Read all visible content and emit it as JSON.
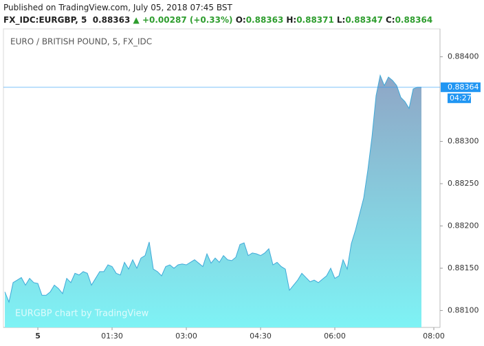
{
  "chart_data": {
    "type": "area",
    "published": "Published on TradingView.com, July 05, 2018 07:45 BST",
    "symbol": "FX_IDC:EURGBP, 5",
    "price": 0.88363,
    "change_arrow": "▲",
    "change": "+0.00287 (+0.33%)",
    "ohlc": [
      {
        "name": "O:",
        "value": 0.88363
      },
      {
        "name": "H:",
        "value": 0.88371
      },
      {
        "name": "L:",
        "value": 0.88347
      },
      {
        "name": "C:",
        "value": 0.88364
      }
    ],
    "title": "EURO / BRITISH POUND, 5, FX_IDC",
    "watermark": "EURGBP chart by TradingView",
    "last_price": {
      "value": 0.88364,
      "label": "0.88364"
    },
    "countdown": "04:27",
    "line_color": "#3fa9d8",
    "fill_top": "#8fa6c6",
    "fill_bottom": "#7ef3f5",
    "label_color": "#2196f3",
    "x": [
      -40,
      -35,
      -30,
      -25,
      -20,
      -15,
      -10,
      -5,
      0,
      5,
      10,
      15,
      20,
      25,
      30,
      35,
      40,
      45,
      50,
      55,
      60,
      65,
      70,
      75,
      80,
      85,
      90,
      95,
      100,
      105,
      110,
      115,
      120,
      125,
      130,
      135,
      140,
      145,
      150,
      155,
      160,
      165,
      170,
      175,
      180,
      185,
      190,
      195,
      200,
      205,
      210,
      215,
      220,
      225,
      230,
      235,
      240,
      245,
      250,
      255,
      260,
      265,
      270,
      275,
      280,
      285,
      290,
      295,
      300,
      305,
      310,
      315,
      320,
      325,
      330,
      335,
      340,
      345,
      350,
      355,
      360,
      365,
      370,
      375,
      380,
      385,
      390,
      395,
      400,
      405,
      410,
      415,
      420,
      425,
      430,
      435,
      440,
      445,
      450,
      455,
      460,
      465
    ],
    "values": [
      0.88122,
      0.8811,
      0.88133,
      0.88136,
      0.88139,
      0.8813,
      0.88138,
      0.88133,
      0.88132,
      0.88118,
      0.88118,
      0.88122,
      0.8813,
      0.88126,
      0.8812,
      0.88138,
      0.88133,
      0.88144,
      0.88142,
      0.88146,
      0.88144,
      0.8813,
      0.88138,
      0.88146,
      0.88146,
      0.88154,
      0.88152,
      0.88144,
      0.88142,
      0.88157,
      0.88149,
      0.8816,
      0.8815,
      0.88162,
      0.88165,
      0.88181,
      0.88149,
      0.88146,
      0.88141,
      0.88152,
      0.88154,
      0.8815,
      0.88154,
      0.88155,
      0.88154,
      0.88157,
      0.8816,
      0.88156,
      0.88152,
      0.88167,
      0.88156,
      0.88162,
      0.88157,
      0.88165,
      0.8816,
      0.88159,
      0.88163,
      0.88178,
      0.8818,
      0.88165,
      0.88168,
      0.88167,
      0.88165,
      0.88168,
      0.88173,
      0.88154,
      0.88157,
      0.88152,
      0.88149,
      0.88124,
      0.8813,
      0.88136,
      0.88144,
      0.88139,
      0.88134,
      0.88136,
      0.88133,
      0.88137,
      0.88141,
      0.8815,
      0.88138,
      0.88141,
      0.8816,
      0.88149,
      0.88179,
      0.88195,
      0.88214,
      0.88233,
      0.88266,
      0.88305,
      0.88354,
      0.88378,
      0.88366,
      0.88376,
      0.88372,
      0.88366,
      0.88352,
      0.88347,
      0.88339,
      0.88362,
      0.88364,
      0.88364
    ],
    "xlim": [
      -41.7,
      487.5
    ],
    "ylim": [
      0.8808,
      0.88433
    ],
    "xticks": [
      {
        "value": 0,
        "label": "5"
      },
      {
        "value": 90,
        "label": "01:30"
      },
      {
        "value": 180,
        "label": "03:00"
      },
      {
        "value": 270,
        "label": "04:30"
      },
      {
        "value": 360,
        "label": "06:00"
      },
      {
        "value": 480,
        "label": "08:00"
      }
    ],
    "yticks": [
      {
        "value": 0.881,
        "label": "0.88100"
      },
      {
        "value": 0.8815,
        "label": "0.88150"
      },
      {
        "value": 0.882,
        "label": "0.88200"
      },
      {
        "value": 0.8825,
        "label": "0.88250"
      },
      {
        "value": 0.883,
        "label": "0.88300"
      },
      {
        "value": 0.884,
        "label": "0.88400"
      }
    ]
  }
}
